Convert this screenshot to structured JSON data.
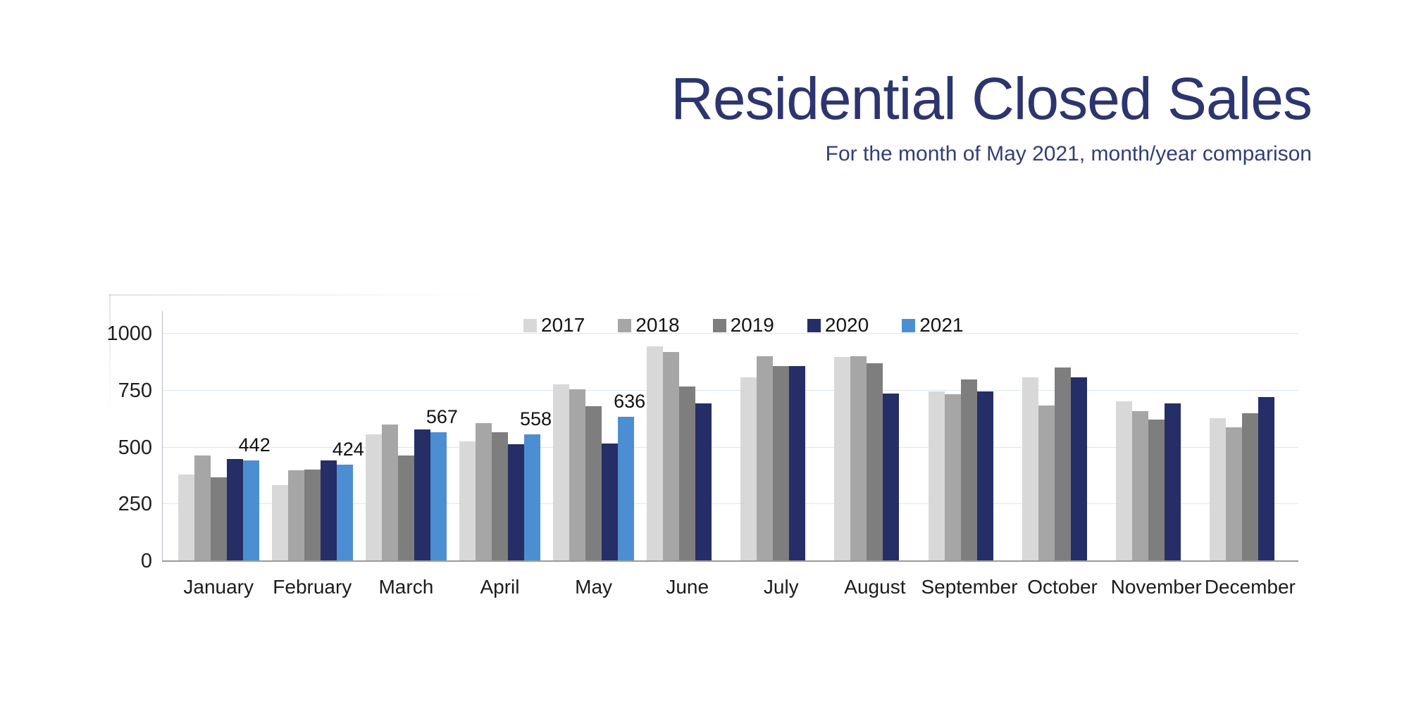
{
  "header": {
    "title": "Residential Closed Sales",
    "subtitle": "For the month of May 2021, month/year comparison",
    "title_color": "#2c356e"
  },
  "chart_data": {
    "type": "bar",
    "title": "Residential Closed Sales",
    "subtitle": "For the month of May 2021, month/year comparison",
    "categories": [
      "January",
      "February",
      "March",
      "April",
      "May",
      "June",
      "July",
      "August",
      "September",
      "October",
      "November",
      "December"
    ],
    "series": [
      {
        "name": "2017",
        "color": "#d8d8d8",
        "values": [
          380,
          335,
          557,
          525,
          777,
          944,
          809,
          899,
          747,
          809,
          702,
          629
        ]
      },
      {
        "name": "2018",
        "color": "#a6a6a6",
        "values": [
          463,
          400,
          600,
          607,
          756,
          921,
          902,
          901,
          734,
          684,
          660,
          588
        ]
      },
      {
        "name": "2019",
        "color": "#7e7e7e",
        "values": [
          370,
          402,
          464,
          568,
          682,
          768,
          858,
          870,
          799,
          852,
          622,
          650
        ]
      },
      {
        "name": "2020",
        "color": "#252e66",
        "values": [
          450,
          443,
          578,
          513,
          516,
          694,
          858,
          737,
          746,
          809,
          694,
          720
        ]
      },
      {
        "name": "2021",
        "color": "#4b8fd2",
        "values": [
          442,
          424,
          567,
          558,
          636,
          null,
          null,
          null,
          null,
          null,
          null,
          null
        ]
      }
    ],
    "data_labels": {
      "series": "2021",
      "labels": [
        {
          "category": "January",
          "value": "442"
        },
        {
          "category": "February",
          "value": "424"
        },
        {
          "category": "March",
          "value": "567"
        },
        {
          "category": "April",
          "value": "558"
        },
        {
          "category": "May",
          "value": "636"
        }
      ]
    },
    "yticks": [
      "0",
      "250",
      "500",
      "750",
      "1000"
    ],
    "ylim": [
      0,
      1100
    ],
    "grid": true,
    "legend_position": "top",
    "grid_color": "#dce4f2",
    "axis_color": "#9b9b9b"
  }
}
